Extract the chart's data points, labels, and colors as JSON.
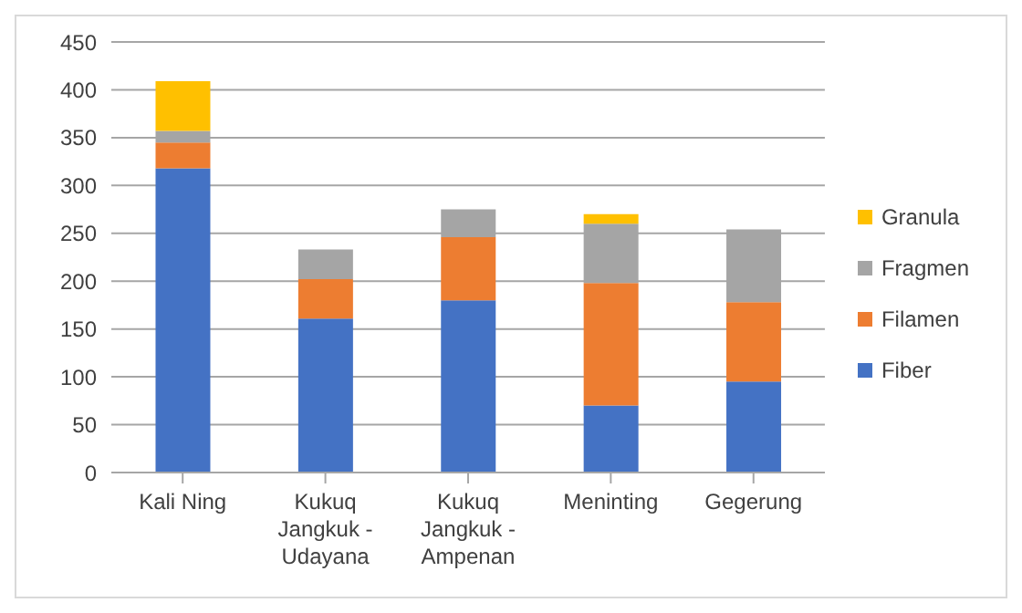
{
  "chart_data": {
    "type": "bar",
    "stacked": true,
    "categories": [
      "Kali Ning",
      "Kukuq Jangkuk - Udayana",
      "Kukuq Jangkuk - Ampenan",
      "Meninting",
      "Gegerung"
    ],
    "series": [
      {
        "name": "Fiber",
        "color": "#4472c4",
        "values": [
          318,
          161,
          180,
          70,
          95
        ]
      },
      {
        "name": "Filamen",
        "color": "#ed7d31",
        "values": [
          27,
          41,
          66,
          128,
          83
        ]
      },
      {
        "name": "Fragmen",
        "color": "#a5a5a5",
        "values": [
          12,
          31,
          29,
          62,
          76
        ]
      },
      {
        "name": "Granula",
        "color": "#ffc000",
        "values": [
          52,
          0,
          0,
          10,
          0
        ]
      }
    ],
    "ylim": [
      0,
      450
    ],
    "yticks": [
      0,
      50,
      100,
      150,
      200,
      250,
      300,
      350,
      400,
      450
    ],
    "grid": "y",
    "legend": "right"
  }
}
